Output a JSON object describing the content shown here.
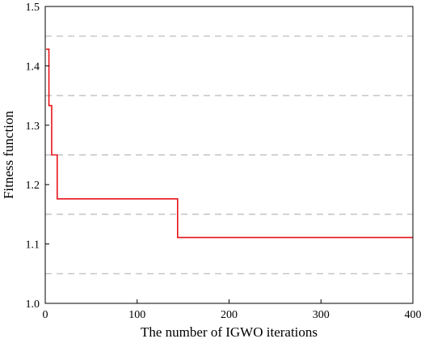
{
  "chart_data": {
    "type": "line",
    "title": "",
    "xlabel": "The number of IGWO iterations",
    "ylabel": "Fitness function",
    "xlim": [
      0,
      400
    ],
    "ylim": [
      1.0,
      1.5
    ],
    "xticks": [
      "0",
      "100",
      "200",
      "300",
      "400"
    ],
    "yticks": [
      "1.0",
      "1.1",
      "1.2",
      "1.3",
      "1.4",
      "1.5"
    ],
    "grid": "horizontal dashed, minor",
    "series": [
      {
        "color": "#e8141a",
        "step": true,
        "x": [
          1,
          4,
          7,
          13,
          144,
          400
        ],
        "y": [
          1.428,
          1.333,
          1.25,
          1.176,
          1.111,
          1.111
        ]
      }
    ]
  }
}
